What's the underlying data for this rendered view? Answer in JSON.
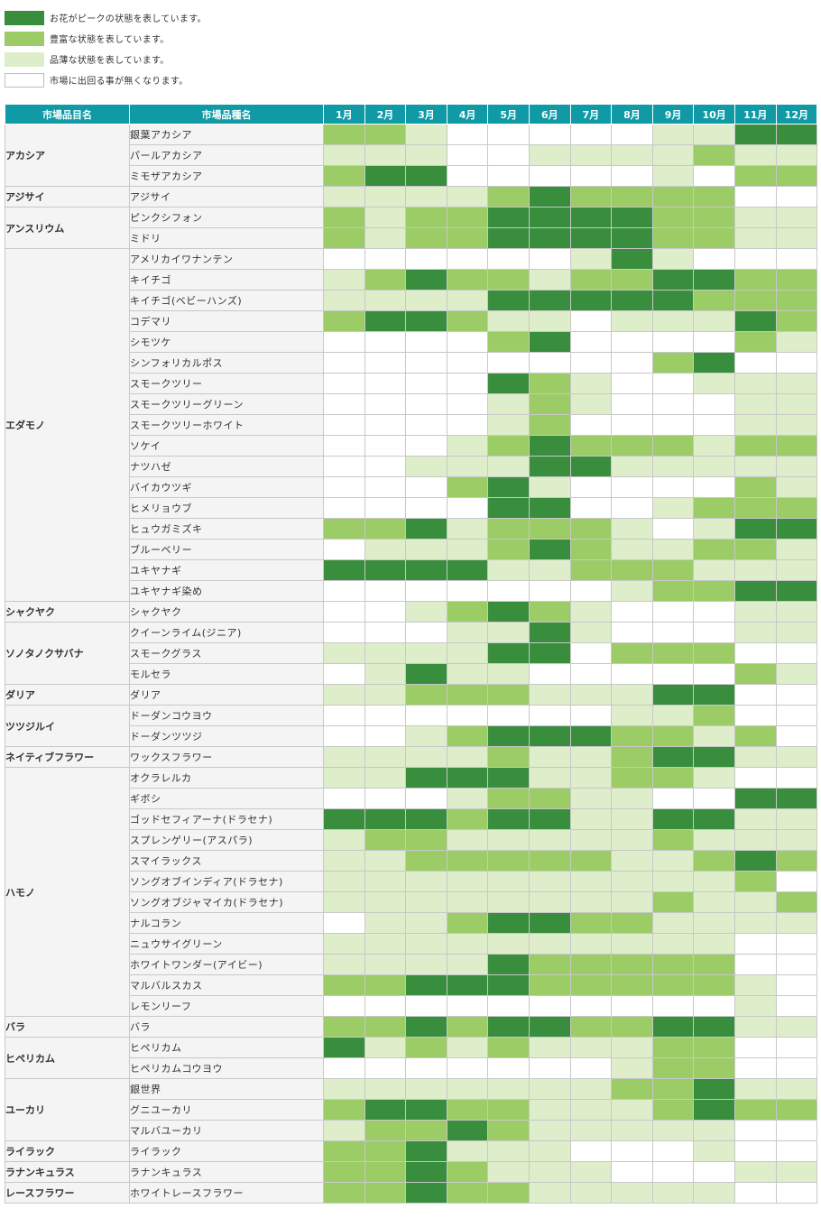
{
  "colors": {
    "0": "#ffffff",
    "1": "#deedca",
    "2": "#9ccc65",
    "3": "#388e3c",
    "header": "#0f9aa6"
  },
  "legend": [
    {
      "level": 3,
      "text": "お花がピークの状態を表しています。"
    },
    {
      "level": 2,
      "text": "豊富な状態を表しています。"
    },
    {
      "level": 1,
      "text": "品薄な状態を表しています。"
    },
    {
      "level": 0,
      "text": "市場に出回る事が無くなります。"
    }
  ],
  "table": {
    "headers": {
      "category": "市場品目名",
      "variety": "市場品種名",
      "months": [
        "1月",
        "2月",
        "3月",
        "4月",
        "5月",
        "6月",
        "7月",
        "8月",
        "9月",
        "10月",
        "11月",
        "12月"
      ]
    },
    "groups": [
      {
        "category": "アカシア",
        "items": [
          {
            "name": "銀葉アカシア",
            "levels": [
              2,
              2,
              1,
              0,
              0,
              0,
              0,
              0,
              1,
              1,
              3,
              3
            ]
          },
          {
            "name": "パールアカシア",
            "levels": [
              1,
              1,
              1,
              0,
              0,
              1,
              1,
              1,
              1,
              2,
              1,
              1
            ]
          },
          {
            "name": "ミモザアカシア",
            "levels": [
              2,
              3,
              3,
              0,
              0,
              0,
              0,
              0,
              1,
              0,
              2,
              2
            ]
          }
        ]
      },
      {
        "category": "アジサイ",
        "items": [
          {
            "name": "アジサイ",
            "levels": [
              1,
              1,
              1,
              1,
              2,
              3,
              2,
              2,
              2,
              2,
              0,
              0
            ]
          }
        ]
      },
      {
        "category": "アンスリウム",
        "items": [
          {
            "name": "ピンクシフォン",
            "levels": [
              2,
              1,
              2,
              2,
              3,
              3,
              3,
              3,
              2,
              2,
              1,
              1
            ]
          },
          {
            "name": "ミドリ",
            "levels": [
              2,
              1,
              2,
              2,
              3,
              3,
              3,
              3,
              2,
              2,
              1,
              1
            ]
          }
        ]
      },
      {
        "category": "エダモノ",
        "items": [
          {
            "name": "アメリカイワナンテン",
            "levels": [
              0,
              0,
              0,
              0,
              0,
              0,
              1,
              3,
              1,
              0,
              0,
              0
            ]
          },
          {
            "name": "キイチゴ",
            "levels": [
              1,
              2,
              3,
              2,
              2,
              1,
              2,
              2,
              3,
              3,
              2,
              2
            ]
          },
          {
            "name": "キイチゴ(ベビーハンズ)",
            "levels": [
              1,
              1,
              1,
              1,
              3,
              3,
              3,
              3,
              3,
              2,
              2,
              2
            ]
          },
          {
            "name": "コデマリ",
            "levels": [
              2,
              3,
              3,
              2,
              1,
              1,
              0,
              1,
              1,
              1,
              3,
              2
            ]
          },
          {
            "name": "シモツケ",
            "levels": [
              0,
              0,
              0,
              0,
              2,
              3,
              0,
              0,
              0,
              0,
              2,
              1
            ]
          },
          {
            "name": "シンフォリカルポス",
            "levels": [
              0,
              0,
              0,
              0,
              0,
              0,
              0,
              0,
              2,
              3,
              0,
              0
            ]
          },
          {
            "name": "スモークツリー",
            "levels": [
              0,
              0,
              0,
              0,
              3,
              2,
              1,
              0,
              0,
              1,
              1,
              1
            ]
          },
          {
            "name": "スモークツリーグリーン",
            "levels": [
              0,
              0,
              0,
              0,
              1,
              2,
              1,
              0,
              0,
              0,
              1,
              1
            ]
          },
          {
            "name": "スモークツリーホワイト",
            "levels": [
              0,
              0,
              0,
              0,
              1,
              2,
              0,
              0,
              0,
              0,
              1,
              1
            ]
          },
          {
            "name": "ソケイ",
            "levels": [
              0,
              0,
              0,
              1,
              2,
              3,
              2,
              2,
              2,
              1,
              2,
              2
            ]
          },
          {
            "name": "ナツハゼ",
            "levels": [
              0,
              0,
              1,
              1,
              1,
              3,
              3,
              1,
              1,
              1,
              1,
              1
            ]
          },
          {
            "name": "バイカウツギ",
            "levels": [
              0,
              0,
              0,
              2,
              3,
              1,
              0,
              0,
              0,
              0,
              2,
              1
            ]
          },
          {
            "name": "ヒメリョウブ",
            "levels": [
              0,
              0,
              0,
              0,
              3,
              3,
              0,
              0,
              1,
              2,
              2,
              2
            ]
          },
          {
            "name": "ヒュウガミズキ",
            "levels": [
              2,
              2,
              3,
              1,
              2,
              2,
              2,
              1,
              0,
              1,
              3,
              3
            ]
          },
          {
            "name": "ブルーベリー",
            "levels": [
              0,
              1,
              1,
              1,
              2,
              3,
              2,
              1,
              1,
              2,
              2,
              1
            ]
          },
          {
            "name": "ユキヤナギ",
            "levels": [
              3,
              3,
              3,
              3,
              1,
              1,
              2,
              2,
              2,
              1,
              1,
              1
            ]
          },
          {
            "name": "ユキヤナギ染め",
            "levels": [
              0,
              0,
              0,
              0,
              0,
              0,
              0,
              1,
              2,
              2,
              3,
              3
            ]
          }
        ]
      },
      {
        "category": "シャクヤク",
        "items": [
          {
            "name": "シャクヤク",
            "levels": [
              0,
              0,
              1,
              2,
              3,
              2,
              1,
              0,
              0,
              0,
              1,
              1
            ]
          }
        ]
      },
      {
        "category": "ソノタノクサバナ",
        "items": [
          {
            "name": "クイーンライム(ジニア)",
            "levels": [
              0,
              0,
              0,
              1,
              1,
              3,
              1,
              0,
              0,
              0,
              1,
              1
            ]
          },
          {
            "name": "スモークグラス",
            "levels": [
              1,
              1,
              1,
              1,
              3,
              3,
              0,
              2,
              2,
              2,
              0,
              0
            ]
          },
          {
            "name": "モルセラ",
            "levels": [
              0,
              1,
              3,
              1,
              1,
              0,
              0,
              0,
              0,
              0,
              2,
              1
            ]
          }
        ]
      },
      {
        "category": "ダリア",
        "items": [
          {
            "name": "ダリア",
            "levels": [
              1,
              1,
              2,
              2,
              2,
              1,
              1,
              1,
              3,
              3,
              0,
              0
            ]
          }
        ]
      },
      {
        "category": "ツツジルイ",
        "items": [
          {
            "name": "ドーダンコウヨウ",
            "levels": [
              0,
              0,
              0,
              0,
              0,
              0,
              0,
              1,
              1,
              2,
              0,
              0
            ]
          },
          {
            "name": "ドーダンツツジ",
            "levels": [
              0,
              0,
              1,
              2,
              3,
              3,
              3,
              2,
              2,
              1,
              2,
              0
            ]
          }
        ]
      },
      {
        "category": "ネイティブフラワー",
        "items": [
          {
            "name": "ワックスフラワー",
            "levels": [
              1,
              1,
              1,
              1,
              2,
              1,
              1,
              2,
              3,
              3,
              1,
              1
            ]
          }
        ]
      },
      {
        "category": "ハモノ",
        "items": [
          {
            "name": "オクラレルカ",
            "levels": [
              1,
              1,
              3,
              3,
              3,
              1,
              1,
              2,
              2,
              1,
              0,
              0
            ]
          },
          {
            "name": "ギボシ",
            "levels": [
              0,
              0,
              0,
              1,
              2,
              2,
              1,
              1,
              0,
              0,
              3,
              3
            ]
          },
          {
            "name": "ゴッドセフィアーナ(ドラセナ)",
            "levels": [
              3,
              3,
              3,
              2,
              3,
              3,
              1,
              1,
              3,
              3,
              1,
              1
            ]
          },
          {
            "name": "スプレンゲリー(アスパラ)",
            "levels": [
              1,
              2,
              2,
              1,
              1,
              1,
              1,
              1,
              2,
              1,
              1,
              1
            ]
          },
          {
            "name": "スマイラックス",
            "levels": [
              1,
              1,
              2,
              2,
              2,
              2,
              2,
              1,
              1,
              2,
              3,
              2
            ]
          },
          {
            "name": "ソングオブインディア(ドラセナ)",
            "levels": [
              1,
              1,
              1,
              1,
              1,
              1,
              1,
              1,
              1,
              1,
              2,
              0
            ]
          },
          {
            "name": "ソングオブジャマイカ(ドラセナ)",
            "levels": [
              1,
              1,
              1,
              1,
              1,
              1,
              1,
              1,
              2,
              1,
              1,
              2
            ]
          },
          {
            "name": "ナルコラン",
            "levels": [
              0,
              1,
              1,
              2,
              3,
              3,
              2,
              2,
              1,
              1,
              1,
              1
            ]
          },
          {
            "name": "ニュウサイグリーン",
            "levels": [
              1,
              1,
              1,
              1,
              1,
              1,
              1,
              1,
              1,
              1,
              0,
              0
            ]
          },
          {
            "name": "ホワイトワンダー(アイビー)",
            "levels": [
              1,
              1,
              1,
              1,
              3,
              2,
              2,
              2,
              2,
              2,
              0,
              0
            ]
          },
          {
            "name": "マルバルスカス",
            "levels": [
              2,
              2,
              3,
              3,
              3,
              2,
              2,
              2,
              2,
              2,
              1,
              0
            ]
          },
          {
            "name": "レモンリーフ",
            "levels": [
              0,
              0,
              0,
              0,
              0,
              0,
              0,
              0,
              0,
              0,
              1,
              0
            ]
          }
        ]
      },
      {
        "category": "バラ",
        "items": [
          {
            "name": "バラ",
            "levels": [
              2,
              2,
              3,
              2,
              3,
              3,
              2,
              2,
              3,
              3,
              1,
              1
            ]
          }
        ]
      },
      {
        "category": "ヒペリカム",
        "items": [
          {
            "name": "ヒペリカム",
            "levels": [
              3,
              1,
              2,
              1,
              2,
              1,
              1,
              1,
              2,
              2,
              0,
              0
            ]
          },
          {
            "name": "ヒペリカムコウヨウ",
            "levels": [
              0,
              0,
              0,
              0,
              0,
              0,
              0,
              1,
              2,
              2,
              0,
              0
            ]
          }
        ]
      },
      {
        "category": "ユーカリ",
        "items": [
          {
            "name": "銀世界",
            "levels": [
              1,
              1,
              1,
              1,
              1,
              1,
              1,
              2,
              2,
              3,
              1,
              1
            ]
          },
          {
            "name": "グニユーカリ",
            "levels": [
              2,
              3,
              3,
              2,
              2,
              1,
              1,
              1,
              2,
              3,
              2,
              2
            ]
          },
          {
            "name": "マルバユーカリ",
            "levels": [
              1,
              2,
              2,
              3,
              2,
              1,
              1,
              1,
              1,
              1,
              0,
              0
            ]
          }
        ]
      },
      {
        "category": "ライラック",
        "items": [
          {
            "name": "ライラック",
            "levels": [
              2,
              2,
              3,
              1,
              1,
              1,
              0,
              0,
              0,
              1,
              0,
              0
            ]
          }
        ]
      },
      {
        "category": "ラナンキュラス",
        "items": [
          {
            "name": "ラナンキュラス",
            "levels": [
              2,
              2,
              3,
              2,
              1,
              1,
              1,
              0,
              0,
              0,
              1,
              1
            ]
          }
        ]
      },
      {
        "category": "レースフラワー",
        "items": [
          {
            "name": "ホワイトレースフラワー",
            "levels": [
              2,
              2,
              3,
              2,
              2,
              1,
              1,
              1,
              1,
              1,
              0,
              0
            ]
          }
        ]
      }
    ]
  }
}
